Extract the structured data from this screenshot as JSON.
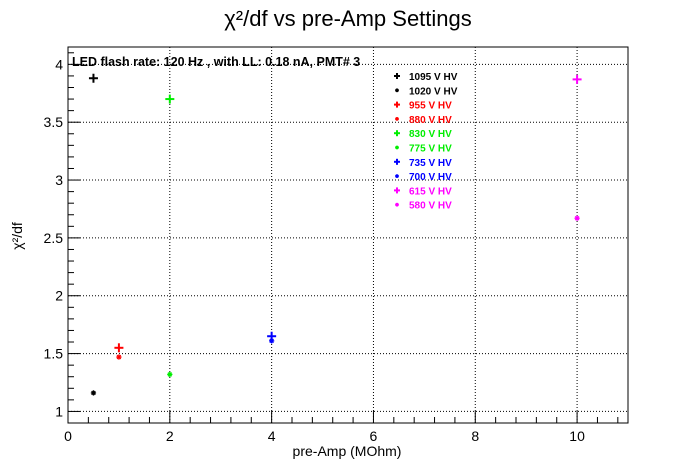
{
  "chart_data": {
    "type": "scatter",
    "title": "χ²/df vs pre-Amp Settings",
    "xlabel": "pre-Amp (MOhm)",
    "ylabel": "χ²/df",
    "annotation": "LED flash rate: 120 Hz , with LL: 0.18 nA, PMT# 3",
    "xlim": [
      0,
      11
    ],
    "ylim": [
      0.9,
      4.15
    ],
    "x_ticks": [
      0,
      2,
      4,
      6,
      8,
      10
    ],
    "y_ticks": [
      1,
      1.5,
      2,
      2.5,
      3,
      3.5,
      4
    ],
    "x_tick_labels": [
      "0",
      "2",
      "4",
      "6",
      "8",
      "10"
    ],
    "y_tick_labels": [
      "1",
      "1.5",
      "2",
      "2.5",
      "3",
      "3.5",
      "4"
    ],
    "grid": true,
    "legend_position": "top-right (inside, center column)",
    "series": [
      {
        "name": "1095 V HV",
        "color": "#000000",
        "marker": "plus",
        "points": [
          [
            0.5,
            3.88
          ]
        ]
      },
      {
        "name": "1020 V HV",
        "color": "#000000",
        "marker": "star",
        "points": [
          [
            0.5,
            1.16
          ]
        ]
      },
      {
        "name": "955 V HV",
        "color": "#ff0000",
        "marker": "plus",
        "points": [
          [
            1.0,
            1.55
          ]
        ]
      },
      {
        "name": "880 V HV",
        "color": "#ff0000",
        "marker": "star",
        "points": [
          [
            1.0,
            1.47
          ]
        ]
      },
      {
        "name": "830 V HV",
        "color": "#00ee00",
        "marker": "plus",
        "points": [
          [
            2.0,
            3.7
          ]
        ]
      },
      {
        "name": "775 V HV",
        "color": "#00ee00",
        "marker": "star",
        "points": [
          [
            2.0,
            1.32
          ]
        ]
      },
      {
        "name": "735 V HV",
        "color": "#0000ff",
        "marker": "plus",
        "points": [
          [
            4.0,
            1.65
          ]
        ]
      },
      {
        "name": "700 V HV",
        "color": "#0000ff",
        "marker": "star",
        "points": [
          [
            4.0,
            1.61
          ]
        ]
      },
      {
        "name": "615 V HV",
        "color": "#ff00ff",
        "marker": "plus",
        "points": [
          [
            10.0,
            3.87
          ]
        ]
      },
      {
        "name": "580 V HV",
        "color": "#ff00ff",
        "marker": "star",
        "points": [
          [
            10.0,
            2.67
          ]
        ]
      }
    ]
  }
}
